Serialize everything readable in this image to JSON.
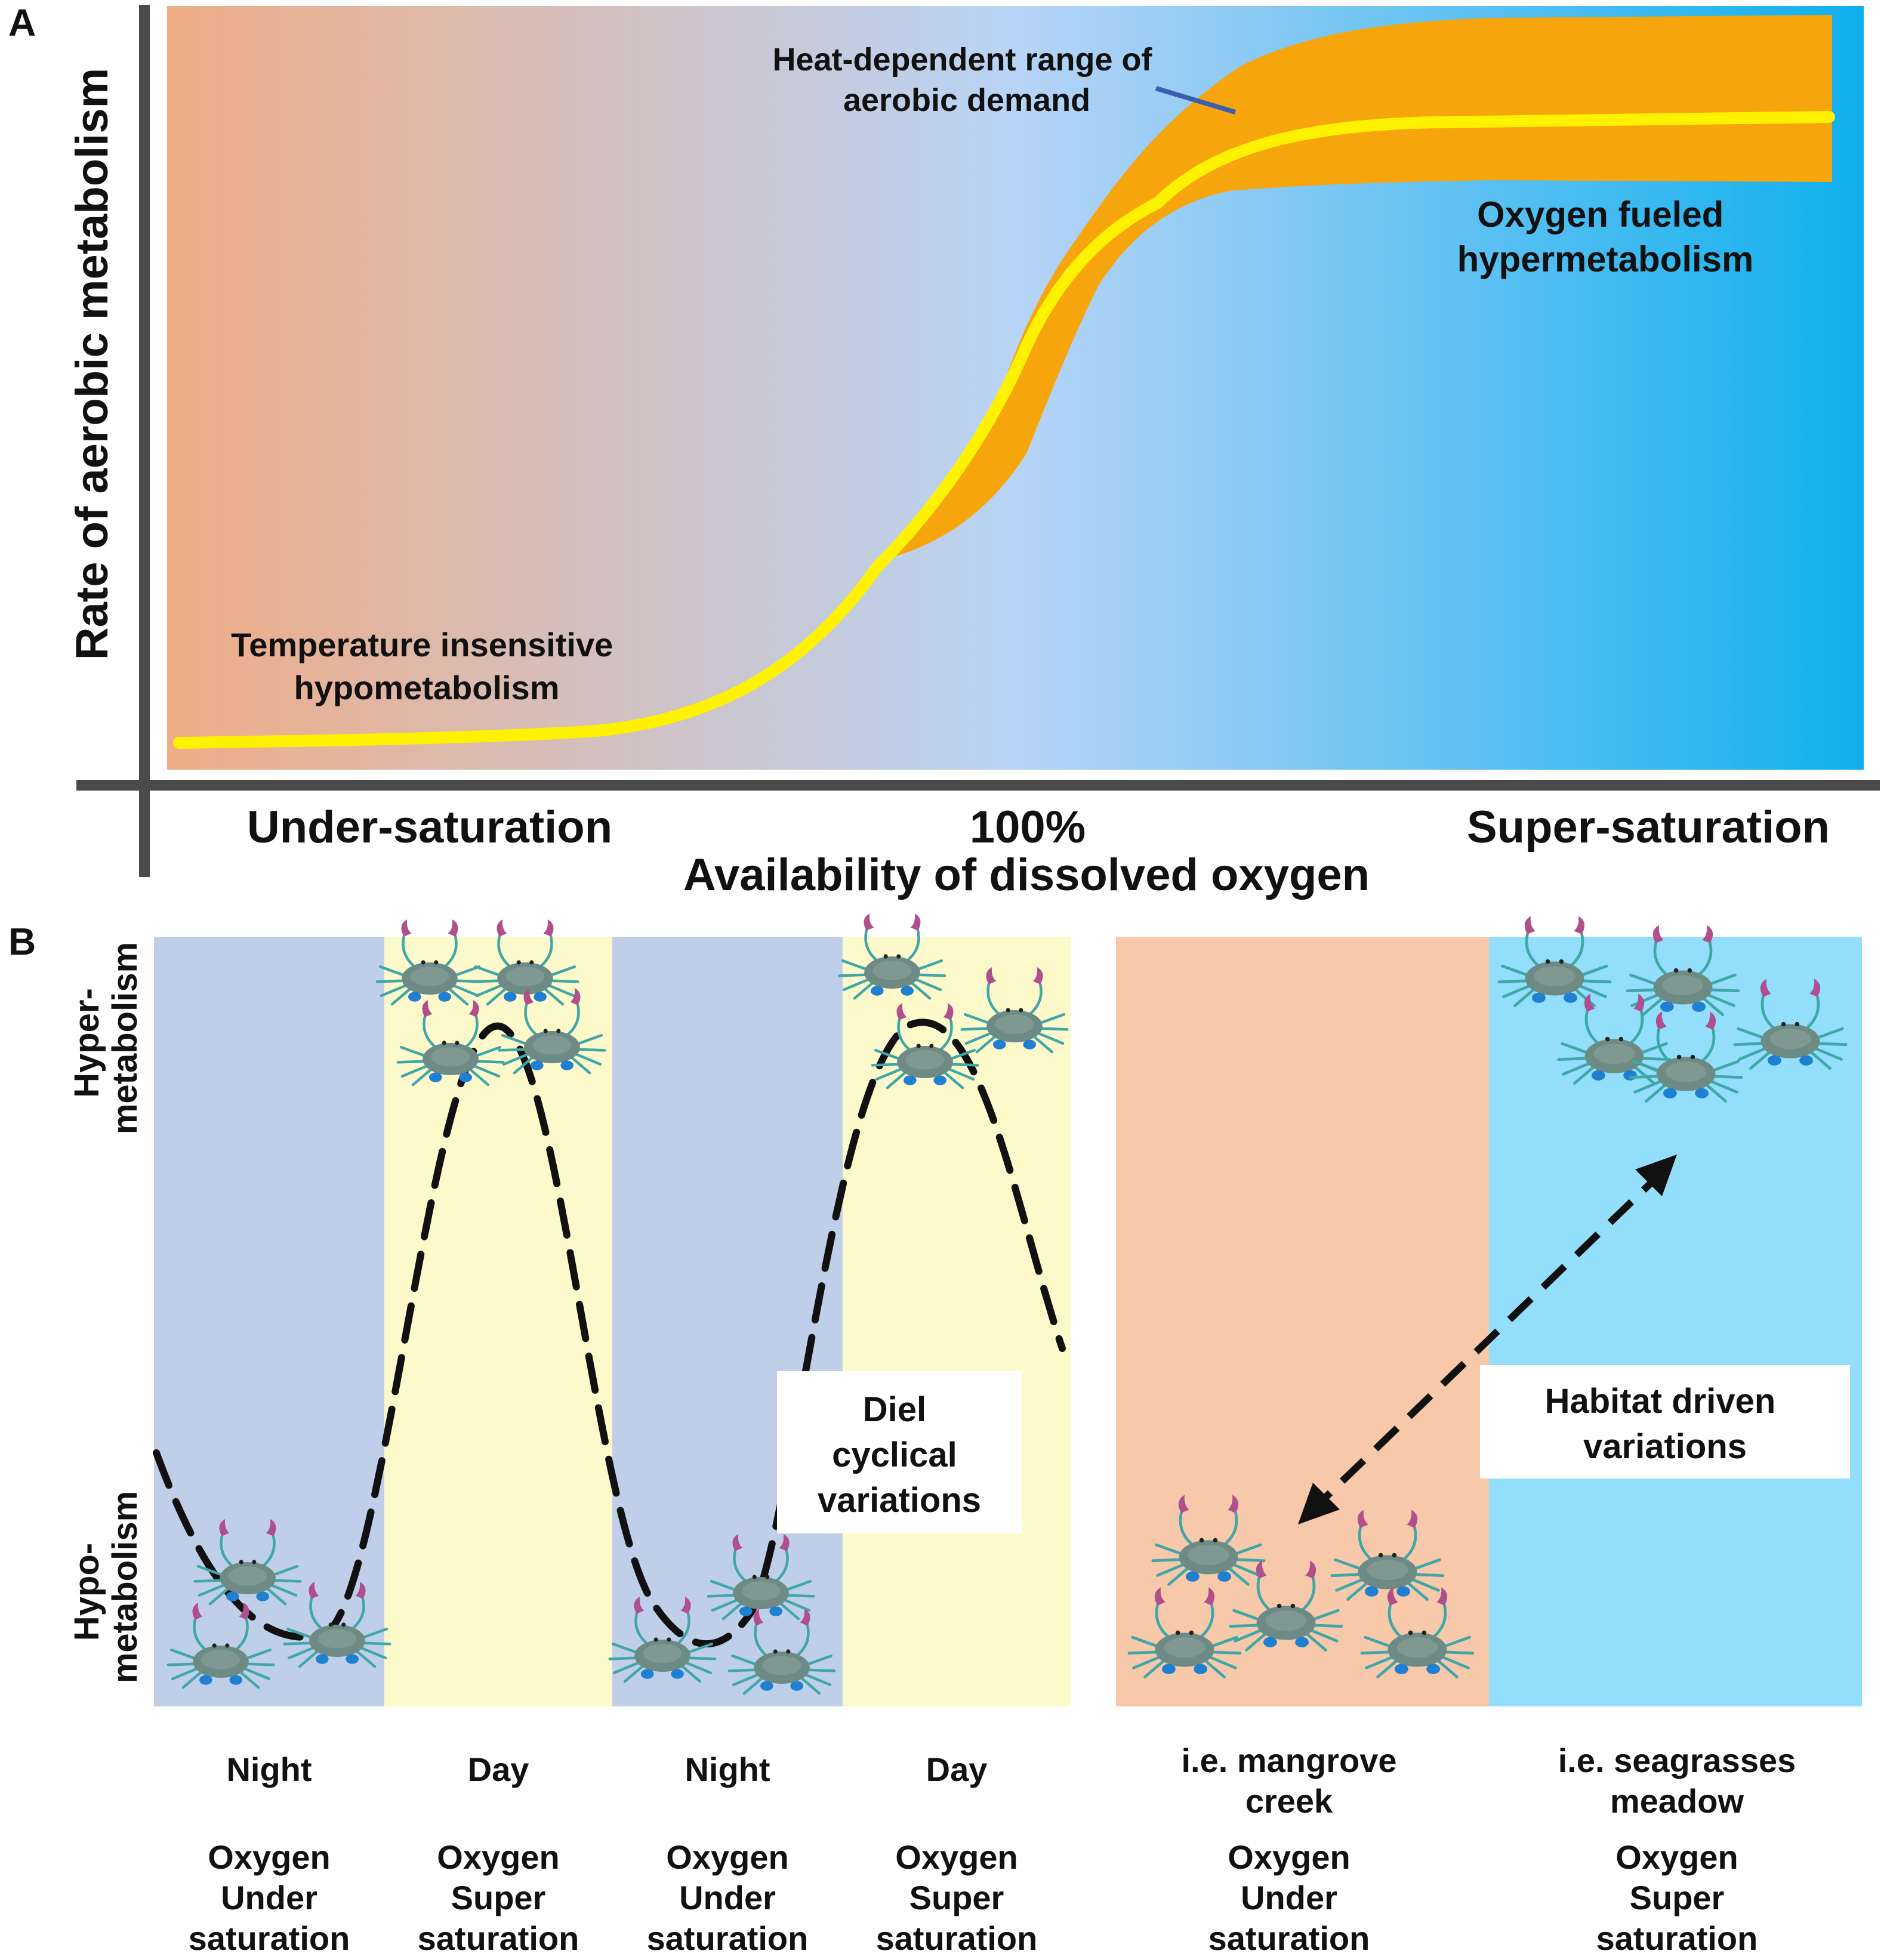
{
  "panel_a": {
    "letter": "A",
    "y_axis_label": "Rate of aerobic metabolism",
    "x_axis_label": "Availability of dissolved oxygen",
    "x_ticks": [
      "Under-saturation",
      "100%",
      "Super-saturation"
    ],
    "band_label": [
      "Heat-dependent range of",
      "aerobic demand"
    ],
    "low_label": [
      "Temperature insensitive",
      "hypometabolism"
    ],
    "high_label": [
      "Oxygen fueled",
      "hypermetabolism"
    ],
    "colors": {
      "under": "#efac86",
      "mid": "#b8d4f6",
      "super": "#0fb0ee",
      "band": "#f7a50c",
      "curve": "#fff200",
      "band_pointer": "#3a5fb0"
    }
  },
  "panel_b": {
    "letter": "B",
    "y_top_label": [
      "Hyper-",
      "metabolism"
    ],
    "y_bottom_label": [
      "Hypo-",
      "metabolism"
    ],
    "diel_box": [
      "Diel",
      "cyclical",
      "variations"
    ],
    "habitat_box": [
      "Habitat driven",
      "variations"
    ],
    "columns": [
      {
        "time": [
          "Night"
        ],
        "oxygen": [
          "Oxygen",
          "Under",
          "saturation"
        ],
        "color": "#bfcfea"
      },
      {
        "time": [
          "Day"
        ],
        "oxygen": [
          "Oxygen",
          "Super",
          "saturation"
        ],
        "color": "#fdf9cb"
      },
      {
        "time": [
          "Night"
        ],
        "oxygen": [
          "Oxygen",
          "Under",
          "saturation"
        ],
        "color": "#bfcfea"
      },
      {
        "time": [
          "Day"
        ],
        "oxygen": [
          "Oxygen",
          "Super",
          "saturation"
        ],
        "color": "#fdf9cb"
      },
      {
        "time": [
          "i.e. mangrove",
          "creek"
        ],
        "oxygen": [
          "Oxygen",
          "Under",
          "saturation"
        ],
        "color": "#f7c9aa"
      },
      {
        "time": [
          "i.e. seagrasses",
          "meadow"
        ],
        "oxygen": [
          "Oxygen",
          "Super",
          "saturation"
        ],
        "color": "#93dffb"
      }
    ],
    "crab_icon": "blue-crab-icon"
  }
}
